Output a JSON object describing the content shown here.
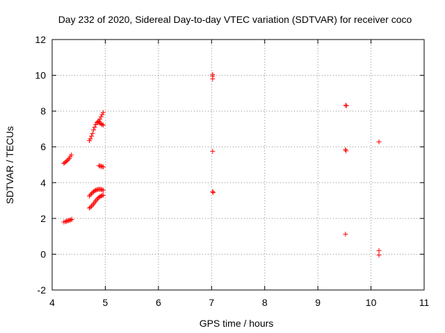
{
  "chart_data": {
    "type": "scatter",
    "title": "Day 232 of 2020, Sidereal Day-to-day VTEC variation (SDTVAR) for receiver coco",
    "xlabel": "GPS time / hours",
    "ylabel": "SDTVAR / TECUs",
    "xlim": [
      4,
      11
    ],
    "ylim": [
      -2,
      12
    ],
    "x_ticks": [
      "4",
      "5",
      "6",
      "7",
      "8",
      "9",
      "10",
      "11"
    ],
    "y_ticks": [
      "-2",
      "0",
      "2",
      "4",
      "6",
      "8",
      "10",
      "12"
    ],
    "grid": true,
    "grid_style": "dotted",
    "marker": "plus",
    "marker_color": "#ff0000",
    "series": [
      {
        "values": [
          [
            4.22,
            1.8
          ],
          [
            4.25,
            1.82
          ],
          [
            4.27,
            1.85
          ],
          [
            4.29,
            1.87
          ],
          [
            4.31,
            1.88
          ],
          [
            4.33,
            1.9
          ],
          [
            4.35,
            1.92
          ],
          [
            4.37,
            1.95
          ],
          [
            4.22,
            5.08
          ],
          [
            4.24,
            5.12
          ],
          [
            4.26,
            5.18
          ],
          [
            4.28,
            5.22
          ],
          [
            4.3,
            5.28
          ],
          [
            4.32,
            5.35
          ],
          [
            4.34,
            5.45
          ],
          [
            4.36,
            5.55
          ],
          [
            4.7,
            2.58
          ],
          [
            4.72,
            2.62
          ],
          [
            4.74,
            2.68
          ],
          [
            4.76,
            2.75
          ],
          [
            4.78,
            2.82
          ],
          [
            4.8,
            2.9
          ],
          [
            4.82,
            2.98
          ],
          [
            4.84,
            3.05
          ],
          [
            4.86,
            3.12
          ],
          [
            4.88,
            3.18
          ],
          [
            4.9,
            3.22
          ],
          [
            4.92,
            3.25
          ],
          [
            4.94,
            3.28
          ],
          [
            4.96,
            3.3
          ],
          [
            4.7,
            3.25
          ],
          [
            4.72,
            3.32
          ],
          [
            4.74,
            3.38
          ],
          [
            4.76,
            3.45
          ],
          [
            4.78,
            3.5
          ],
          [
            4.8,
            3.55
          ],
          [
            4.82,
            3.58
          ],
          [
            4.84,
            3.6
          ],
          [
            4.86,
            3.62
          ],
          [
            4.88,
            3.63
          ],
          [
            4.9,
            3.63
          ],
          [
            4.92,
            3.62
          ],
          [
            4.94,
            3.6
          ],
          [
            4.96,
            3.58
          ],
          [
            4.88,
            4.95
          ],
          [
            4.9,
            4.93
          ],
          [
            4.92,
            4.92
          ],
          [
            4.94,
            4.9
          ],
          [
            4.96,
            4.88
          ],
          [
            4.7,
            6.35
          ],
          [
            4.72,
            6.45
          ],
          [
            4.74,
            6.6
          ],
          [
            4.76,
            6.75
          ],
          [
            4.78,
            6.95
          ],
          [
            4.8,
            7.1
          ],
          [
            4.82,
            7.25
          ],
          [
            4.84,
            7.35
          ],
          [
            4.86,
            7.4
          ],
          [
            4.88,
            7.38
          ],
          [
            4.9,
            7.32
          ],
          [
            4.92,
            7.28
          ],
          [
            4.94,
            7.25
          ],
          [
            4.96,
            7.22
          ],
          [
            4.88,
            7.45
          ],
          [
            4.9,
            7.55
          ],
          [
            4.92,
            7.68
          ],
          [
            4.94,
            7.8
          ],
          [
            4.96,
            7.92
          ],
          [
            7.02,
            10.05
          ],
          [
            7.02,
            9.95
          ],
          [
            7.02,
            9.8
          ],
          [
            7.02,
            5.75
          ],
          [
            7.02,
            3.5
          ],
          [
            7.03,
            3.45
          ],
          [
            9.52,
            8.32
          ],
          [
            9.54,
            8.3
          ],
          [
            9.52,
            5.85
          ],
          [
            9.53,
            5.78
          ],
          [
            9.52,
            1.12
          ],
          [
            10.15,
            6.28
          ],
          [
            10.15,
            0.2
          ],
          [
            10.15,
            -0.05
          ]
        ]
      }
    ]
  }
}
